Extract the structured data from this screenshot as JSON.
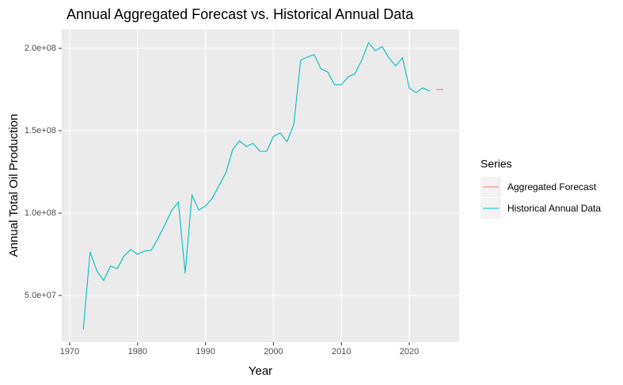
{
  "chart_data": {
    "type": "line",
    "title": "Annual Aggregated Forecast vs. Historical Annual Data",
    "x_label": "Year",
    "y_label": "Annual Total Oil Production",
    "legend_title": "Series",
    "legend_position": "right",
    "grid": true,
    "xlim": [
      1968.83,
      2027.34
    ],
    "ylim": [
      21630000,
      211540000
    ],
    "xticks": [
      1970,
      1980,
      1990,
      2000,
      2010,
      2020
    ],
    "yticks": [
      {
        "value": 50000000,
        "label": "5.0e+07"
      },
      {
        "value": 100000000,
        "label": "1.0e+08"
      },
      {
        "value": 150000000,
        "label": "1.5e+08"
      },
      {
        "value": 200000000,
        "label": "2.0e+08"
      }
    ],
    "series": [
      {
        "name": "Aggregated Forecast",
        "color": "#F8766D",
        "x": [
          2024,
          2025
        ],
        "values": [
          175000000,
          175000000
        ]
      },
      {
        "name": "Historical Annual Data",
        "color": "#00BFC4",
        "x": [
          1972,
          1973,
          1974,
          1975,
          1976,
          1977,
          1978,
          1979,
          1980,
          1981,
          1982,
          1983,
          1984,
          1985,
          1986,
          1987,
          1988,
          1989,
          1990,
          1991,
          1992,
          1993,
          1994,
          1995,
          1996,
          1997,
          1998,
          1999,
          2000,
          2001,
          2002,
          2003,
          2004,
          2005,
          2006,
          2007,
          2008,
          2009,
          2010,
          2011,
          2012,
          2013,
          2014,
          2015,
          2016,
          2017,
          2018,
          2019,
          2020,
          2021,
          2022,
          2023
        ],
        "values": [
          29300000,
          76400000,
          64900000,
          59100000,
          67800000,
          66300000,
          74000000,
          77900000,
          75000000,
          76900000,
          77400000,
          84600000,
          92800000,
          101400000,
          106700000,
          63500000,
          111000000,
          101900000,
          104300000,
          109100000,
          116800000,
          124500000,
          138500000,
          143800000,
          140400000,
          142300000,
          137500000,
          137500000,
          146600000,
          148600000,
          143300000,
          153800000,
          192800000,
          194700000,
          196200000,
          187500000,
          185600000,
          177900000,
          177900000,
          182700000,
          184600000,
          192800000,
          203400000,
          198600000,
          201000000,
          194200000,
          189400000,
          194200000,
          176000000,
          173100000,
          176000000,
          174000000
        ]
      }
    ]
  }
}
